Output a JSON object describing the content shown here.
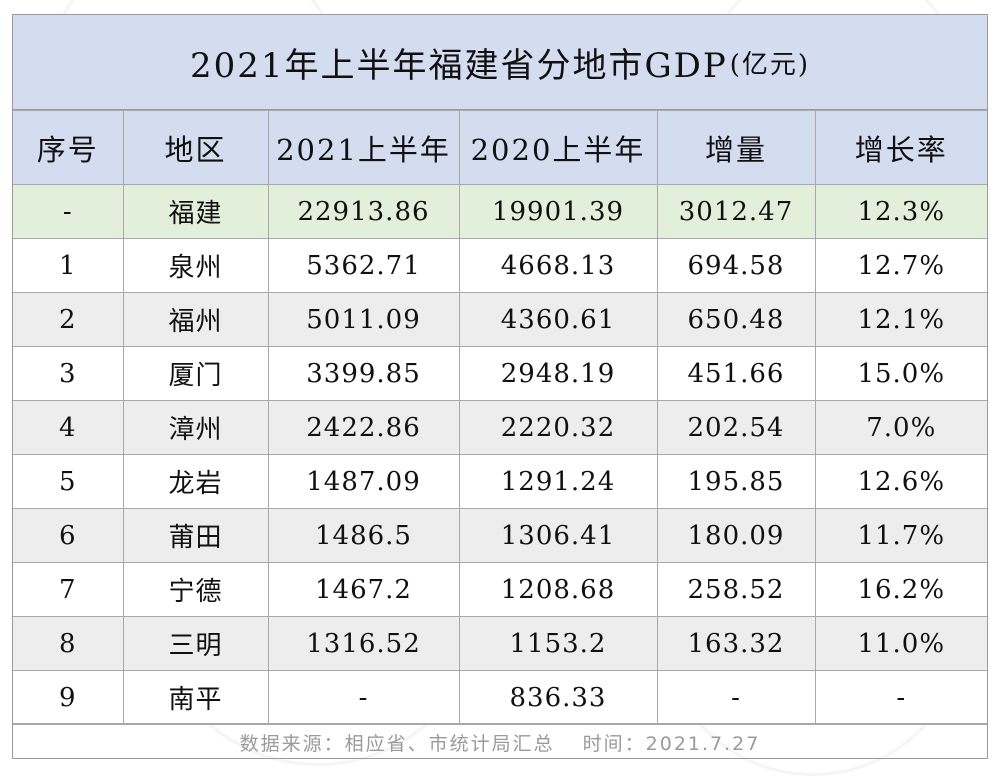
{
  "title": {
    "main": "2021年上半年福建省分地市GDP",
    "unit": "(亿元)"
  },
  "headers": [
    "序号",
    "地区",
    "2021上半年",
    "2020上半年",
    "增量",
    "增长率"
  ],
  "rows": [
    [
      "-",
      "福建",
      "22913.86",
      "19901.39",
      "3012.47",
      "12.3%"
    ],
    [
      "1",
      "泉州",
      "5362.71",
      "4668.13",
      "694.58",
      "12.7%"
    ],
    [
      "2",
      "福州",
      "5011.09",
      "4360.61",
      "650.48",
      "12.1%"
    ],
    [
      "3",
      "厦门",
      "3399.85",
      "2948.19",
      "451.66",
      "15.0%"
    ],
    [
      "4",
      "漳州",
      "2422.86",
      "2220.32",
      "202.54",
      "7.0%"
    ],
    [
      "5",
      "龙岩",
      "1487.09",
      "1291.24",
      "195.85",
      "12.6%"
    ],
    [
      "6",
      "莆田",
      "1486.5",
      "1306.41",
      "180.09",
      "11.7%"
    ],
    [
      "7",
      "宁德",
      "1467.2",
      "1208.68",
      "258.52",
      "16.2%"
    ],
    [
      "8",
      "三明",
      "1316.52",
      "1153.2",
      "163.32",
      "11.0%"
    ],
    [
      "9",
      "南平",
      "-",
      "836.33",
      "-",
      "-"
    ]
  ],
  "footer": {
    "source": "数据来源：相应省、市统计局汇总",
    "time": "时间：2021.7.27"
  },
  "colors": {
    "header_bg": "#d4dcf0",
    "total_row_bg": "#e2efda",
    "stripe_bg": "#ededed",
    "border": "#a8a8a8"
  }
}
